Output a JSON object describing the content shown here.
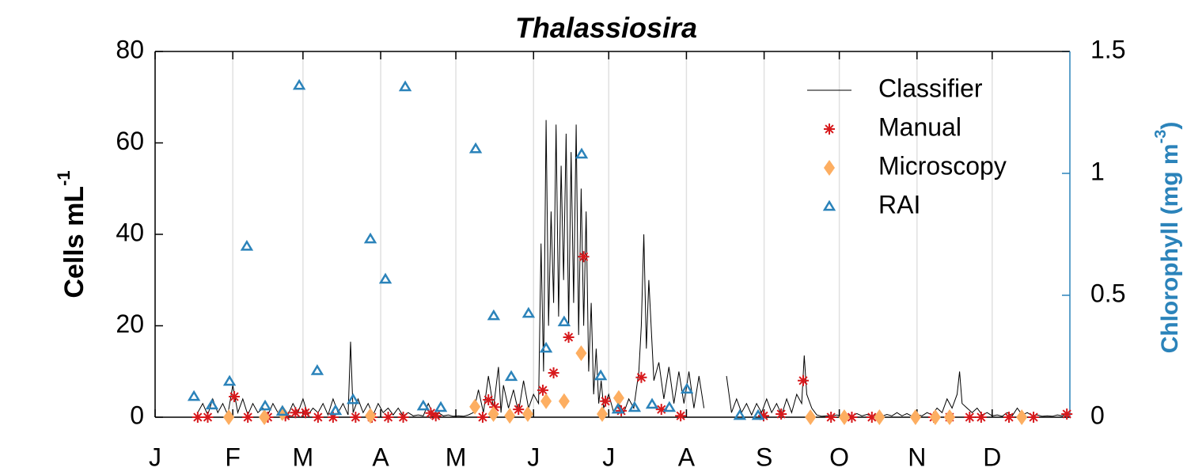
{
  "chart_data": {
    "type": "time-series",
    "title": "Thalassiosira",
    "y_label": "Cells mL",
    "y_label_sup": "-1",
    "y2_label": "Chlorophyll (mg m",
    "y2_label_sup": "-3",
    "y2_label_end": ")",
    "xlim": [
      0,
      365
    ],
    "xticks": [
      {
        "value": 0,
        "label": "J"
      },
      {
        "value": 31,
        "label": "F"
      },
      {
        "value": 59,
        "label": "M"
      },
      {
        "value": 90,
        "label": "A"
      },
      {
        "value": 120,
        "label": "M"
      },
      {
        "value": 151,
        "label": "J"
      },
      {
        "value": 181,
        "label": "J"
      },
      {
        "value": 212,
        "label": "A"
      },
      {
        "value": 243,
        "label": "S"
      },
      {
        "value": 273,
        "label": "O"
      },
      {
        "value": 304,
        "label": "N"
      },
      {
        "value": 334,
        "label": "D"
      }
    ],
    "ylim": [
      0,
      80
    ],
    "yticks": [
      0,
      20,
      40,
      60,
      80
    ],
    "y2lim": [
      0,
      1.5
    ],
    "y2ticks": [
      0,
      0.5,
      1,
      1.5
    ],
    "y2color": "#2b83ba",
    "grid": "x",
    "legend": "upper right",
    "series": [
      {
        "name": "Classifier",
        "style": "line",
        "color": "#000000",
        "x": [
          17,
          19,
          21,
          23,
          25,
          27,
          29,
          31,
          33,
          35,
          37,
          39,
          41,
          43,
          45,
          47,
          49,
          51,
          53,
          55,
          57,
          59,
          61,
          63,
          65,
          67,
          69,
          71,
          73,
          75,
          77,
          78,
          79,
          81,
          83,
          85,
          87,
          89,
          91,
          93,
          95,
          97,
          99,
          101,
          103,
          105,
          107,
          109,
          111,
          113,
          115,
          117,
          119,
          121,
          123,
          125,
          127,
          129,
          131,
          133,
          135,
          137,
          138,
          139,
          141,
          143,
          145,
          147,
          149,
          151,
          153,
          154,
          155,
          156,
          157,
          158,
          159,
          160,
          161,
          162,
          163,
          164,
          165,
          166,
          167,
          168,
          169,
          170,
          171,
          172,
          173,
          174,
          175,
          176,
          177,
          178,
          179,
          181,
          183,
          185,
          187,
          189,
          191,
          193,
          194,
          195,
          196,
          197,
          199,
          201,
          203,
          205,
          207,
          209,
          211,
          213,
          215,
          217,
          219,
          222,
          228,
          230,
          232,
          234,
          236,
          238,
          240,
          242,
          244,
          246,
          248,
          250,
          252,
          254,
          256,
          258,
          259,
          260,
          262,
          264,
          266,
          268,
          270,
          272,
          274,
          276,
          278,
          280,
          282,
          284,
          286,
          288,
          290,
          292,
          294,
          296,
          298,
          300,
          302,
          304,
          306,
          308,
          310,
          312,
          314,
          316,
          318,
          320,
          321,
          322,
          324,
          326,
          328,
          330,
          332,
          334,
          336,
          338,
          340,
          342,
          344,
          346,
          348,
          350,
          352,
          354,
          356,
          358,
          360,
          362,
          364
        ],
        "values": [
          1,
          3,
          0.5,
          4,
          1,
          3,
          0.5,
          7,
          1,
          4,
          0.5,
          3,
          1,
          2,
          0.5,
          3,
          1,
          2,
          0.5,
          3,
          1,
          4,
          0.5,
          2,
          1,
          3,
          0.5,
          4,
          1,
          3,
          0.5,
          16.5,
          1,
          4,
          1,
          3,
          0.5,
          3,
          1,
          2,
          0.5,
          2,
          0.3,
          1,
          0.3,
          0.5,
          0.3,
          3,
          0.5,
          1,
          0.3,
          0.5,
          0.2,
          0.3,
          0.2,
          0.5,
          1,
          6,
          1,
          9,
          2,
          11,
          1,
          7,
          2,
          6,
          1,
          8,
          2,
          5,
          3,
          38,
          10,
          65,
          20,
          45,
          25,
          64,
          22,
          55,
          30,
          62,
          20,
          58,
          25,
          64,
          18,
          50,
          20,
          45,
          10,
          25,
          5,
          15,
          3,
          8,
          2,
          5,
          1,
          3,
          1,
          4,
          2,
          10,
          20,
          40,
          15,
          30,
          8,
          12,
          4,
          11,
          3,
          10,
          3,
          10,
          2,
          9,
          2,
          null,
          9,
          1,
          4,
          1,
          3,
          0.5,
          3,
          1,
          4,
          1,
          3,
          0.5,
          4,
          1,
          5,
          3,
          13.5,
          5,
          2,
          0.5,
          0.2,
          0.3,
          0.2,
          0.5,
          0.2,
          0.5,
          0.2,
          0.8,
          0.3,
          0.6,
          0.2,
          0.5,
          0.2,
          0.6,
          0.3,
          1,
          0.3,
          0.8,
          0.2,
          0.6,
          0.3,
          1,
          0.5,
          2,
          1,
          4,
          2,
          5,
          10,
          3,
          2,
          1,
          2,
          0.5,
          1,
          0.3,
          0.5,
          0.2,
          1,
          0.3,
          2,
          0.5,
          1,
          0.3,
          0.5,
          0.2,
          0.3,
          0.2,
          0.5,
          0.3,
          1
        ]
      },
      {
        "name": "Manual",
        "style": "asterisk",
        "color": "#d7191c",
        "x": [
          17,
          21,
          31.6,
          37,
          45,
          52,
          56,
          60,
          65,
          71,
          80,
          86.5,
          93,
          99,
          110,
          112,
          130.7,
          133,
          135.5,
          145,
          154.7,
          159,
          165,
          171,
          179.7,
          186,
          194,
          202,
          209.7,
          242.8,
          249.8,
          258.6,
          269.7,
          278,
          286,
          310.7,
          317,
          325,
          329.6,
          340.7,
          350.5,
          363.8
        ],
        "values": [
          0,
          0,
          4.5,
          0,
          0,
          0.3,
          1,
          1,
          0,
          0,
          0,
          0,
          0,
          0,
          0.9,
          0.3,
          0,
          3.8,
          2.2,
          1.7,
          5.9,
          9.7,
          17.5,
          35.1,
          3.5,
          1.4,
          8.7,
          1.7,
          0.3,
          0.3,
          0.7,
          8,
          0,
          0,
          0,
          0,
          0,
          0,
          0,
          0,
          0,
          0.7
        ]
      },
      {
        "name": "Microscopy",
        "style": "diamond",
        "color": "#fdae61",
        "x": [
          29.4,
          43.6,
          50.8,
          85.9,
          127.6,
          135,
          141.5,
          148.7,
          156,
          163.2,
          170,
          178.4,
          185,
          261.5,
          275,
          289,
          303.4,
          311.3,
          317,
          345.8
        ],
        "values": [
          0,
          0,
          0.9,
          0.3,
          2.3,
          0.7,
          0.3,
          0.7,
          3.5,
          3.5,
          14,
          0.7,
          4.2,
          0,
          0,
          0,
          0,
          0,
          0,
          0
        ]
      },
      {
        "name": "RAI",
        "style": "triangle",
        "color": "#2b83ba",
        "axis": "y2",
        "x": [
          15.5,
          22.7,
          29.7,
          36.6,
          43.9,
          50.8,
          57.5,
          64.7,
          72,
          79,
          85.9,
          91.9,
          99.8,
          107,
          114,
          127.9,
          135.1,
          142.1,
          149,
          156,
          163.2,
          170.2,
          177.8,
          184.7,
          191.3,
          198.3,
          205.2,
          212.2,
          233.3,
          240.6
        ],
        "values": [
          0.084,
          0.049,
          0.146,
          0.7,
          0.045,
          0.023,
          1.36,
          0.19,
          0.026,
          0.071,
          0.73,
          0.565,
          1.354,
          0.045,
          0.039,
          1.1,
          0.415,
          0.166,
          0.425,
          0.282,
          0.39,
          1.078,
          0.169,
          0.032,
          0.039,
          0.052,
          0.039,
          0.114,
          0.006,
          0.006
        ]
      }
    ]
  }
}
